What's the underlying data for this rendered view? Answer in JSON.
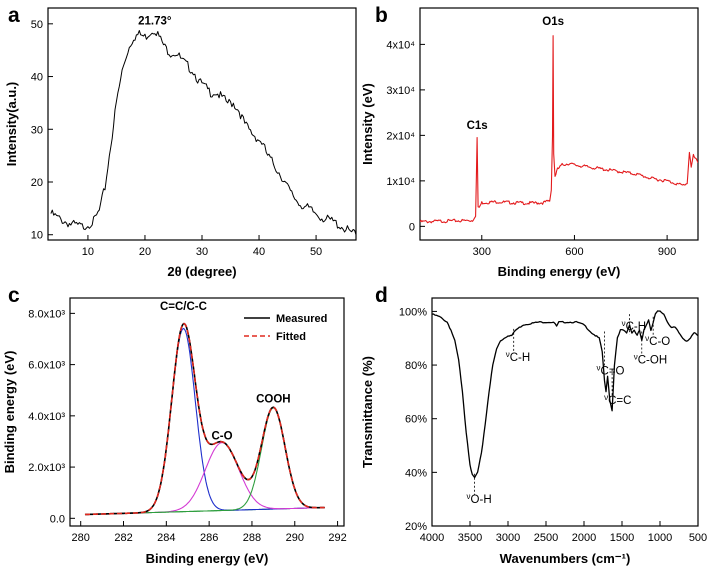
{
  "chart_data": [
    {
      "id": "a",
      "type": "line",
      "panel_label": "a",
      "xlabel": "2θ (degree)",
      "ylabel": "Intensity(a.u.)",
      "xlim": [
        3,
        57
      ],
      "ylim": [
        9,
        53
      ],
      "xticks": [
        10,
        20,
        30,
        40,
        50
      ],
      "yticks": [
        10,
        20,
        30,
        40,
        50
      ],
      "grid": false,
      "annotations": [
        {
          "text": "21.73°",
          "x": 21.73,
          "y": 49.5
        }
      ],
      "series": [
        {
          "color": "#000000",
          "x": [
            3.5,
            5,
            7,
            9,
            11,
            12,
            13,
            14,
            15,
            16,
            17,
            18,
            19,
            20,
            21,
            21.73,
            22.5,
            23.5,
            24.5,
            25.5,
            26.5,
            27.5,
            28.5,
            29.5,
            30.5,
            31.5,
            32.5,
            33.5,
            34.5,
            35.5,
            36.5,
            37.5,
            38.5,
            39.5,
            40.5,
            41.5,
            42.5,
            44,
            45.5,
            47,
            48.5,
            50,
            51.5,
            53,
            54.5,
            56,
            57
          ],
          "y": [
            14,
            13,
            12,
            11.5,
            12.5,
            14.5,
            19,
            27,
            35,
            41,
            45,
            47.5,
            48,
            47.5,
            48.5,
            49,
            47.5,
            45.5,
            44.5,
            44.5,
            43,
            42,
            41,
            39,
            38,
            37,
            37,
            36,
            35,
            35,
            33.5,
            31,
            29.5,
            28.5,
            27.5,
            25,
            23.5,
            21,
            18,
            16,
            15,
            14,
            13,
            12.5,
            11.5,
            10.5,
            10
          ]
        }
      ]
    },
    {
      "id": "b",
      "type": "line",
      "panel_label": "b",
      "xlabel": "Binding energy (eV)",
      "ylabel": "Intensity (eV)",
      "xlim": [
        100,
        1000
      ],
      "ylim": [
        -3000,
        48000
      ],
      "xticks": [
        300,
        600,
        900
      ],
      "yticks": [
        {
          "value": 0,
          "label": "0"
        },
        {
          "value": 10000,
          "label": "1x10⁴"
        },
        {
          "value": 20000,
          "label": "2x10⁴"
        },
        {
          "value": 30000,
          "label": "3x10⁴"
        },
        {
          "value": 40000,
          "label": "4x10⁴"
        }
      ],
      "grid": false,
      "annotations": [
        {
          "text": "C1s",
          "x": 285,
          "y": 21000
        },
        {
          "text": "O1s",
          "x": 531,
          "y": 43800
        }
      ],
      "series": [
        {
          "color": "#e31a1c",
          "x": [
            100,
            200,
            270,
            280,
            285,
            288,
            292,
            300,
            350,
            400,
            450,
            500,
            520,
            525,
            529,
            531,
            533,
            537,
            545,
            560,
            580,
            600,
            650,
            700,
            750,
            800,
            850,
            900,
            950,
            965,
            972,
            978,
            985,
            1000
          ],
          "y": [
            1000,
            1200,
            1300,
            2500,
            19500,
            4000,
            4200,
            5200,
            5400,
            5200,
            5100,
            5200,
            5600,
            8000,
            20000,
            42000,
            16000,
            11000,
            12500,
            13500,
            13800,
            13500,
            13000,
            12500,
            12000,
            11500,
            10500,
            10000,
            9000,
            9500,
            16500,
            13000,
            15500,
            14000
          ]
        }
      ]
    },
    {
      "id": "c",
      "type": "line",
      "panel_label": "c",
      "xlabel": "Binding energy (eV)",
      "ylabel": "Binding energy (eV)",
      "xlim": [
        279.5,
        292.3
      ],
      "ylim": [
        -300,
        8600
      ],
      "xticks": [
        280,
        282,
        284,
        286,
        288,
        290,
        292
      ],
      "yticks": [
        {
          "value": 0,
          "label": "0.0"
        },
        {
          "value": 2000,
          "label": "2.0x10³"
        },
        {
          "value": 4000,
          "label": "4.0x10³"
        },
        {
          "value": 6000,
          "label": "6.0x10³"
        },
        {
          "value": 8000,
          "label": "8.0x10³"
        }
      ],
      "grid": false,
      "legend": {
        "position": "top-right",
        "entries": [
          "Measured",
          "Fitted"
        ]
      },
      "annotations": [
        {
          "text": "C=C/C-C",
          "x": 284.8,
          "y": 8050
        },
        {
          "text": "C-O",
          "x": 286.6,
          "y": 3000
        },
        {
          "text": "COOH",
          "x": 289.0,
          "y": 4450
        }
      ],
      "components": [
        {
          "label": "C=C/C-C",
          "center": 284.8,
          "height": 7150,
          "sigma": 0.55,
          "color": "#1f2fcc"
        },
        {
          "label": "C-O",
          "center": 286.6,
          "height": 2650,
          "sigma": 0.78,
          "color": "#d43bd4"
        },
        {
          "label": "COOH",
          "center": 289.0,
          "height": 3950,
          "sigma": 0.55,
          "color": "#2e9e3e"
        }
      ],
      "baseline": {
        "start": 150,
        "end": 420
      },
      "series": [
        {
          "name": "Measured",
          "color": "#000000",
          "dash": false
        },
        {
          "name": "Fitted",
          "color": "#e0281e",
          "dash": true
        }
      ]
    },
    {
      "id": "d",
      "type": "line",
      "panel_label": "d",
      "xlabel": "Wavenumbers (cm⁻¹)",
      "ylabel": "Transmittance (%)",
      "xlim": [
        4000,
        500
      ],
      "ylim": [
        20,
        105
      ],
      "xticks": [
        4000,
        3500,
        3000,
        2500,
        2000,
        1500,
        1000,
        500
      ],
      "yticks": [
        {
          "value": 20,
          "label": "20%"
        },
        {
          "value": 40,
          "label": "40%"
        },
        {
          "value": 60,
          "label": "60%"
        },
        {
          "value": 80,
          "label": "80%"
        },
        {
          "value": 100,
          "label": "100%"
        }
      ],
      "grid": false,
      "annotations": [
        {
          "text": "O-H",
          "x": 3440,
          "y": 33,
          "marker_y": 38
        },
        {
          "text": "C-H",
          "x": 2925,
          "y": 86,
          "marker_y": 92
        },
        {
          "text": "C=O",
          "x": 1730,
          "y": 81,
          "marker_y": 91
        },
        {
          "text": "C=C",
          "x": 1630,
          "y": 70,
          "marker_y": 77
        },
        {
          "text": "C-H",
          "x": 1400,
          "y": 97.5,
          "marker_y": 93
        },
        {
          "text": "C-OH",
          "x": 1240,
          "y": 85,
          "marker_y": 91
        },
        {
          "text": "C-O",
          "x": 1090,
          "y": 92,
          "marker_y": 96.5
        }
      ],
      "series": [
        {
          "color": "#000000",
          "x": [
            4000,
            3900,
            3800,
            3750,
            3700,
            3650,
            3600,
            3550,
            3500,
            3470,
            3440,
            3400,
            3350,
            3300,
            3250,
            3200,
            3150,
            3100,
            3050,
            3000,
            2950,
            2925,
            2900,
            2850,
            2800,
            2700,
            2600,
            2500,
            2400,
            2360,
            2330,
            2300,
            2200,
            2100,
            2000,
            1900,
            1850,
            1800,
            1760,
            1730,
            1710,
            1690,
            1660,
            1630,
            1600,
            1560,
            1520,
            1480,
            1440,
            1400,
            1370,
            1340,
            1300,
            1270,
            1240,
            1210,
            1180,
            1150,
            1120,
            1090,
            1060,
            1030,
            1000,
            950,
            900,
            850,
            800,
            750,
            700,
            650,
            600,
            550,
            500
          ],
          "y": [
            99,
            98,
            96,
            93,
            89,
            82,
            70,
            55,
            43,
            39,
            38,
            40,
            47,
            58,
            70,
            80,
            86,
            89,
            90,
            91,
            91,
            92,
            93,
            94,
            95,
            95.5,
            96,
            96,
            96,
            94.5,
            96,
            96,
            96,
            96,
            95,
            92,
            91,
            90,
            85,
            74,
            70,
            76,
            67,
            63,
            80,
            90,
            93,
            93,
            92,
            95,
            92,
            93,
            91,
            93,
            89,
            93,
            95,
            97,
            93,
            96,
            99,
            100,
            100,
            99,
            96,
            94,
            94,
            92,
            90,
            89,
            90,
            92,
            91
          ]
        }
      ]
    }
  ]
}
